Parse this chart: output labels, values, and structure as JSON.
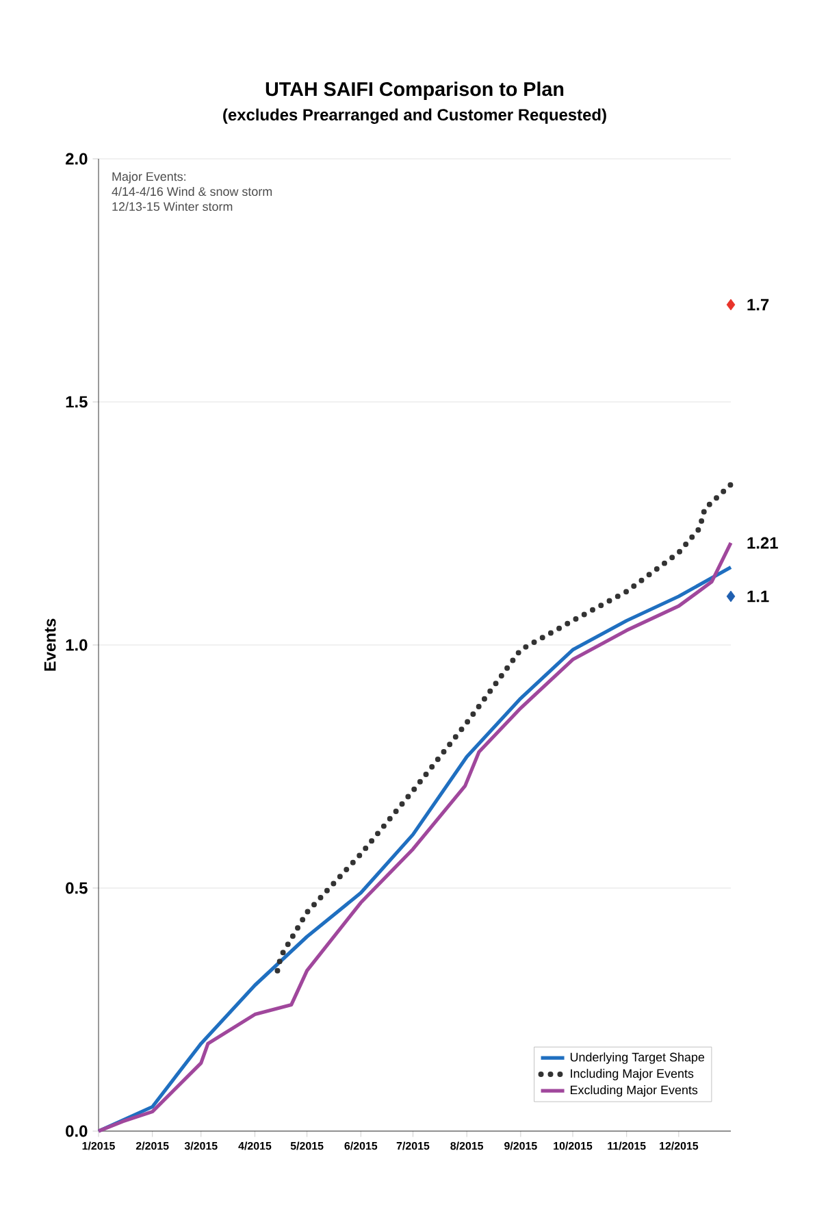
{
  "chart_data": {
    "type": "line",
    "title": "UTAH SAIFI Comparison to Plan",
    "subtitle": "(excludes Prearranged and Customer Requested)",
    "ylabel": "Events",
    "xlim": [
      "2015-01-01",
      "2015-12-31"
    ],
    "xticks": [
      {
        "value": "2015-01-01",
        "label": "1/2015"
      },
      {
        "value": "2015-02-01",
        "label": "2/2015"
      },
      {
        "value": "2015-03-01",
        "label": "3/2015"
      },
      {
        "value": "2015-04-01",
        "label": "4/2015"
      },
      {
        "value": "2015-05-01",
        "label": "5/2015"
      },
      {
        "value": "2015-06-01",
        "label": "6/2015"
      },
      {
        "value": "2015-07-01",
        "label": "7/2015"
      },
      {
        "value": "2015-08-01",
        "label": "8/2015"
      },
      {
        "value": "2015-09-01",
        "label": "9/2015"
      },
      {
        "value": "2015-10-01",
        "label": "10/2015"
      },
      {
        "value": "2015-11-01",
        "label": "11/2015"
      },
      {
        "value": "2015-12-01",
        "label": "12/2015"
      }
    ],
    "ylim": [
      0,
      2.0
    ],
    "yticks": [
      {
        "value": 0,
        "label": "0.0"
      },
      {
        "value": 0.5,
        "label": "0.5"
      },
      {
        "value": 1.0,
        "label": "1.0"
      },
      {
        "value": 1.5,
        "label": "1.5"
      },
      {
        "value": 2.0,
        "label": "2.0"
      }
    ],
    "grid": "y",
    "legend": "bottom right",
    "series": [
      {
        "name": "Underlying Target Shape",
        "color": "#1f6fc0",
        "line_style": "solid",
        "x": [
          "2015-01-01",
          "2015-02-01",
          "2015-03-01",
          "2015-04-01",
          "2015-05-01",
          "2015-06-01",
          "2015-07-01",
          "2015-08-01",
          "2015-09-01",
          "2015-10-01",
          "2015-11-01",
          "2015-12-01",
          "2015-12-31"
        ],
        "values": [
          0,
          0.05,
          0.18,
          0.3,
          0.4,
          0.49,
          0.61,
          0.77,
          0.89,
          0.99,
          1.05,
          1.1,
          1.16
        ]
      },
      {
        "name": "Including Major Events",
        "color": "#333333",
        "line_style": "dotted",
        "x": [
          "2015-04-14",
          "2015-04-16",
          "2015-05-01",
          "2015-06-01",
          "2015-07-01",
          "2015-08-01",
          "2015-09-01",
          "2015-10-01",
          "2015-11-01",
          "2015-12-01",
          "2015-12-13",
          "2015-12-16",
          "2015-12-31"
        ],
        "values": [
          0.33,
          0.36,
          0.45,
          0.57,
          0.7,
          0.84,
          0.99,
          1.05,
          1.11,
          1.19,
          1.24,
          1.28,
          1.33
        ]
      },
      {
        "name": "Excluding Major Events",
        "color": "#a0479c",
        "line_style": "solid",
        "x": [
          "2015-01-01",
          "2015-01-15",
          "2015-02-01",
          "2015-03-01",
          "2015-03-05",
          "2015-04-01",
          "2015-04-22",
          "2015-05-01",
          "2015-06-01",
          "2015-07-01",
          "2015-07-31",
          "2015-08-08",
          "2015-09-01",
          "2015-10-01",
          "2015-11-01",
          "2015-12-01",
          "2015-12-20",
          "2015-12-31"
        ],
        "values": [
          0,
          0.02,
          0.04,
          0.14,
          0.18,
          0.24,
          0.26,
          0.33,
          0.47,
          0.58,
          0.71,
          0.78,
          0.87,
          0.97,
          1.03,
          1.08,
          1.13,
          1.21
        ]
      },
      {
        "type": "scatter",
        "marker": "diamond",
        "colors": [
          "#1f5fb0",
          "#e8332a"
        ],
        "x": [
          "2015-12-31",
          "2015-12-31"
        ],
        "values": [
          1.1,
          1.7
        ]
      }
    ],
    "annotations": [
      "Major Events:",
      "4/14-4/16 Wind & snow storm",
      "12/13-15 Winter storm",
      {
        "text": "1.1",
        "x": "2015-12-31",
        "y": 1.1
      },
      {
        "text": "1.21",
        "x": "2015-12-31",
        "y": 1.21
      },
      {
        "text": "1.7",
        "x": "2015-12-31",
        "y": 1.7
      }
    ]
  }
}
